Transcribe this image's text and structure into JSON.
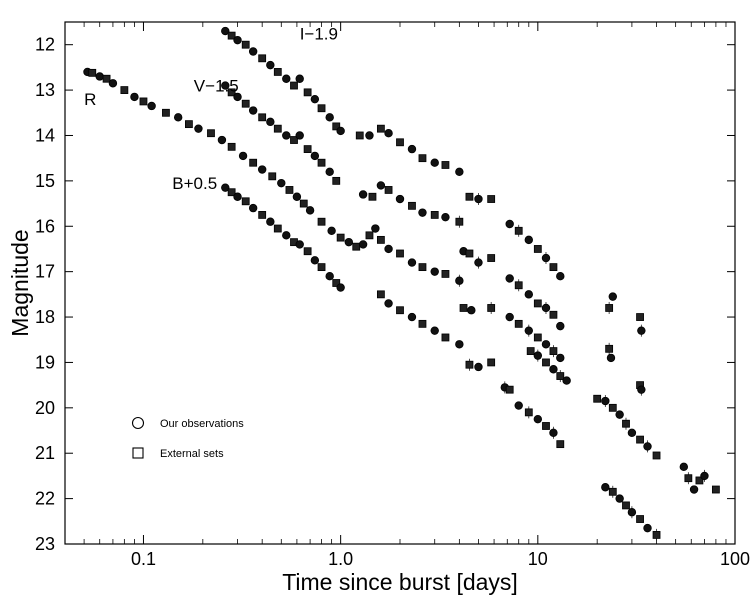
{
  "chart_data": {
    "type": "scatter",
    "xlabel": "Time since burst [days]",
    "ylabel": "Magnitude",
    "xscale": "log",
    "xlim": [
      0.04,
      100
    ],
    "ylim": [
      23,
      11.5
    ],
    "y_inverted": true,
    "grid": false,
    "x_ticks": [
      0.1,
      1.0,
      10,
      100
    ],
    "x_tick_labels": [
      "0.1",
      "1.0",
      "10",
      "100"
    ],
    "y_ticks": [
      12,
      13,
      14,
      15,
      16,
      17,
      18,
      19,
      20,
      21,
      22,
      23
    ],
    "y_tick_labels": [
      "12",
      "13",
      "14",
      "15",
      "16",
      "17",
      "18",
      "19",
      "20",
      "21",
      "22",
      "23"
    ],
    "legend": {
      "placement": "lower-left",
      "entries": [
        {
          "marker": "circle",
          "label": "Our observations"
        },
        {
          "marker": "square",
          "label": "External sets"
        }
      ]
    },
    "series": [
      {
        "name": "I−1.9",
        "label_at": [
          0.62,
          11.75
        ],
        "points": [
          [
            0.26,
            11.7
          ],
          [
            0.28,
            11.8
          ],
          [
            0.3,
            11.9
          ],
          [
            0.33,
            12.0
          ],
          [
            0.36,
            12.15
          ],
          [
            0.4,
            12.3
          ],
          [
            0.44,
            12.45
          ],
          [
            0.48,
            12.6
          ],
          [
            0.53,
            12.75
          ],
          [
            0.58,
            12.9
          ],
          [
            0.62,
            12.75
          ],
          [
            0.68,
            13.05
          ],
          [
            0.74,
            13.2
          ],
          [
            0.8,
            13.4
          ],
          [
            0.88,
            13.6
          ],
          [
            0.95,
            13.8
          ],
          [
            1.0,
            13.9
          ],
          [
            1.25,
            14.0
          ],
          [
            1.4,
            14.0
          ],
          [
            1.6,
            13.85
          ],
          [
            1.75,
            13.95
          ],
          [
            2.0,
            14.15
          ],
          [
            2.3,
            14.3
          ],
          [
            2.6,
            14.5
          ],
          [
            3.0,
            14.6
          ],
          [
            3.4,
            14.65
          ],
          [
            4.0,
            14.8
          ],
          [
            4.5,
            15.35
          ],
          [
            5.0,
            15.4
          ],
          [
            5.8,
            15.4
          ],
          [
            7.2,
            15.95
          ],
          [
            8.0,
            16.1
          ],
          [
            9.0,
            16.3
          ],
          [
            10.0,
            16.5
          ],
          [
            11.0,
            16.7
          ],
          [
            12.0,
            16.9
          ],
          [
            13.0,
            17.1
          ],
          [
            23.0,
            17.8
          ],
          [
            24.0,
            17.55
          ],
          [
            33.0,
            18.0
          ],
          [
            33.5,
            18.3
          ]
        ]
      },
      {
        "name": "V−1.5",
        "label_at": [
          0.18,
          12.9
        ],
        "points": [
          [
            0.26,
            12.9
          ],
          [
            0.28,
            13.05
          ],
          [
            0.3,
            13.15
          ],
          [
            0.33,
            13.3
          ],
          [
            0.36,
            13.45
          ],
          [
            0.4,
            13.6
          ],
          [
            0.44,
            13.7
          ],
          [
            0.48,
            13.85
          ],
          [
            0.53,
            14.0
          ],
          [
            0.58,
            14.1
          ],
          [
            0.62,
            14.0
          ],
          [
            0.68,
            14.3
          ],
          [
            0.74,
            14.45
          ],
          [
            0.8,
            14.6
          ],
          [
            0.88,
            14.8
          ],
          [
            0.95,
            15.0
          ],
          [
            1.3,
            15.3
          ],
          [
            1.45,
            15.35
          ],
          [
            1.6,
            15.1
          ],
          [
            1.75,
            15.2
          ],
          [
            2.0,
            15.4
          ],
          [
            2.3,
            15.55
          ],
          [
            2.6,
            15.7
          ],
          [
            3.0,
            15.75
          ],
          [
            3.4,
            15.8
          ],
          [
            4.0,
            15.9
          ],
          [
            4.2,
            16.55
          ],
          [
            4.5,
            16.6
          ],
          [
            5.0,
            16.8
          ],
          [
            5.8,
            16.7
          ],
          [
            7.2,
            17.15
          ],
          [
            8.0,
            17.3
          ],
          [
            9.0,
            17.5
          ],
          [
            10.0,
            17.7
          ],
          [
            11.0,
            17.8
          ],
          [
            12.0,
            17.95
          ],
          [
            13.0,
            18.2
          ],
          [
            23.0,
            18.7
          ],
          [
            23.5,
            18.9
          ],
          [
            33.0,
            19.5
          ],
          [
            33.5,
            19.6
          ]
        ]
      },
      {
        "name": "R",
        "label_at": [
          0.05,
          13.2
        ],
        "points": [
          [
            0.052,
            12.6
          ],
          [
            0.055,
            12.62
          ],
          [
            0.06,
            12.7
          ],
          [
            0.065,
            12.75
          ],
          [
            0.07,
            12.85
          ],
          [
            0.08,
            13.0
          ],
          [
            0.09,
            13.15
          ],
          [
            0.1,
            13.25
          ],
          [
            0.11,
            13.35
          ],
          [
            0.13,
            13.5
          ],
          [
            0.15,
            13.6
          ],
          [
            0.17,
            13.75
          ],
          [
            0.19,
            13.85
          ],
          [
            0.22,
            13.95
          ],
          [
            0.25,
            14.1
          ],
          [
            0.28,
            14.25
          ],
          [
            0.32,
            14.45
          ],
          [
            0.36,
            14.6
          ],
          [
            0.4,
            14.75
          ],
          [
            0.45,
            14.9
          ],
          [
            0.5,
            15.05
          ],
          [
            0.55,
            15.2
          ],
          [
            0.6,
            15.35
          ],
          [
            0.65,
            15.5
          ],
          [
            0.7,
            15.65
          ],
          [
            0.8,
            15.9
          ],
          [
            0.9,
            16.1
          ],
          [
            1.0,
            16.25
          ],
          [
            1.1,
            16.35
          ],
          [
            1.2,
            16.45
          ],
          [
            1.3,
            16.4
          ],
          [
            1.4,
            16.2
          ],
          [
            1.5,
            16.05
          ],
          [
            1.6,
            16.3
          ],
          [
            1.75,
            16.5
          ],
          [
            2.0,
            16.6
          ],
          [
            2.3,
            16.8
          ],
          [
            2.6,
            16.9
          ],
          [
            3.0,
            17.0
          ],
          [
            3.4,
            17.05
          ],
          [
            4.0,
            17.2
          ],
          [
            4.2,
            17.8
          ],
          [
            4.6,
            17.85
          ],
          [
            5.8,
            17.8
          ],
          [
            7.2,
            18.0
          ],
          [
            8.0,
            18.15
          ],
          [
            9.0,
            18.3
          ],
          [
            10.0,
            18.45
          ],
          [
            11.0,
            18.6
          ],
          [
            12.0,
            18.75
          ],
          [
            13.0,
            18.9
          ],
          [
            9.2,
            18.75
          ],
          [
            10.0,
            18.85
          ],
          [
            11.0,
            19.0
          ],
          [
            12.0,
            19.15
          ],
          [
            13.0,
            19.3
          ],
          [
            14.0,
            19.4
          ],
          [
            20.0,
            19.8
          ],
          [
            22.0,
            19.85
          ],
          [
            24.0,
            20.0
          ],
          [
            26.0,
            20.15
          ],
          [
            28.0,
            20.35
          ],
          [
            30.0,
            20.55
          ],
          [
            33.0,
            20.7
          ],
          [
            36.0,
            20.85
          ],
          [
            40.0,
            21.05
          ],
          [
            55.0,
            21.3
          ],
          [
            58.0,
            21.55
          ],
          [
            62.0,
            21.8
          ],
          [
            66.0,
            21.6
          ],
          [
            70.0,
            21.5
          ],
          [
            80.0,
            21.8
          ]
        ]
      },
      {
        "name": "B+0.5",
        "label_at": [
          0.14,
          15.05
        ],
        "points": [
          [
            0.26,
            15.15
          ],
          [
            0.28,
            15.25
          ],
          [
            0.3,
            15.35
          ],
          [
            0.33,
            15.45
          ],
          [
            0.36,
            15.6
          ],
          [
            0.4,
            15.75
          ],
          [
            0.44,
            15.9
          ],
          [
            0.48,
            16.05
          ],
          [
            0.53,
            16.2
          ],
          [
            0.58,
            16.35
          ],
          [
            0.62,
            16.4
          ],
          [
            0.68,
            16.55
          ],
          [
            0.74,
            16.75
          ],
          [
            0.8,
            16.9
          ],
          [
            0.88,
            17.1
          ],
          [
            0.95,
            17.25
          ],
          [
            1.0,
            17.35
          ],
          [
            1.6,
            17.5
          ],
          [
            1.75,
            17.7
          ],
          [
            2.0,
            17.85
          ],
          [
            2.3,
            18.0
          ],
          [
            2.6,
            18.15
          ],
          [
            3.0,
            18.3
          ],
          [
            3.4,
            18.45
          ],
          [
            4.0,
            18.6
          ],
          [
            4.5,
            19.05
          ],
          [
            5.0,
            19.1
          ],
          [
            5.8,
            19.0
          ],
          [
            6.8,
            19.55
          ],
          [
            7.2,
            19.6
          ],
          [
            8.0,
            19.95
          ],
          [
            9.0,
            20.1
          ],
          [
            10.0,
            20.25
          ],
          [
            11.0,
            20.4
          ],
          [
            12.0,
            20.55
          ],
          [
            13.0,
            20.8
          ],
          [
            22.0,
            21.75
          ],
          [
            24.0,
            21.85
          ],
          [
            26.0,
            22.0
          ],
          [
            28.0,
            22.15
          ],
          [
            30.0,
            22.3
          ],
          [
            33.0,
            22.45
          ],
          [
            36.0,
            22.65
          ],
          [
            40.0,
            22.8
          ]
        ]
      }
    ]
  }
}
